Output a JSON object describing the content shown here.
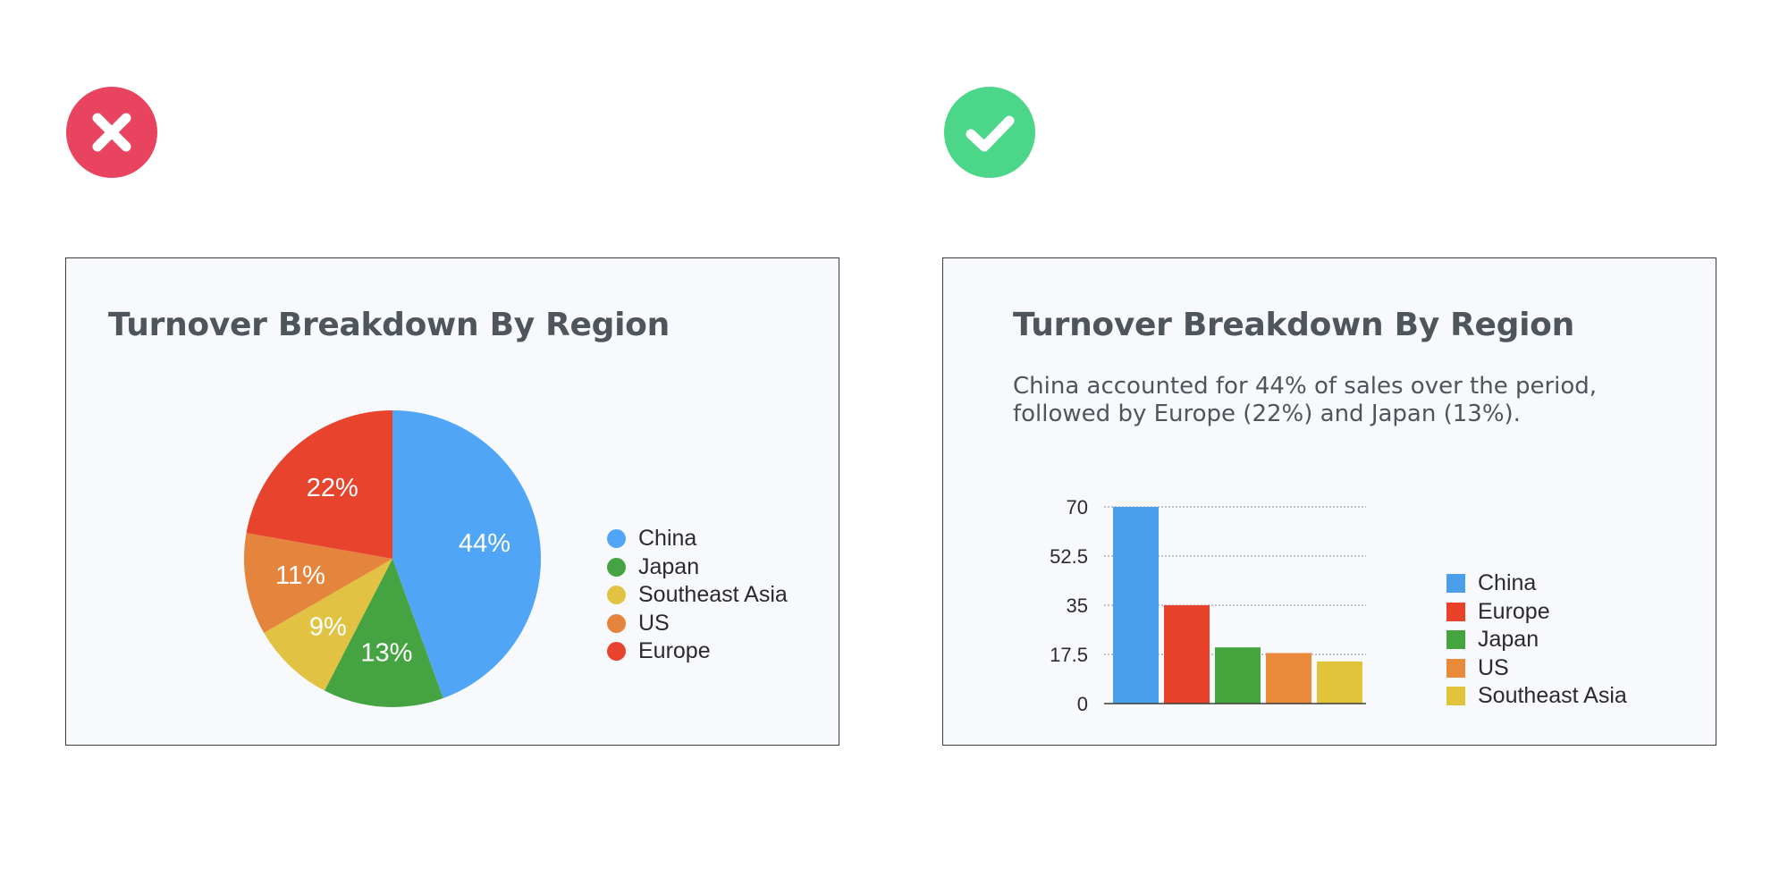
{
  "badges": {
    "bad": {
      "icon": "x-icon",
      "color": "#e8435f"
    },
    "good": {
      "icon": "checkmark-icon",
      "color": "#4cd68a"
    }
  },
  "panels": {
    "bad": {
      "title": "Turnover Breakdown By Region"
    },
    "good": {
      "title": "Turnover Breakdown By Region",
      "summary": "China accounted for 44% of sales over the period, followed by Europe (22%) and Japan (13%)."
    }
  },
  "chart_data": [
    {
      "type": "pie",
      "title": "Turnover Breakdown By Region",
      "slices": [
        {
          "label": "China",
          "value": 44,
          "display": "44%",
          "color": "#50a5f7"
        },
        {
          "label": "Japan",
          "value": 13,
          "display": "13%",
          "color": "#45a441"
        },
        {
          "label": "Southeast Asia",
          "value": 9,
          "display": "9%",
          "color": "#e2c243"
        },
        {
          "label": "US",
          "value": 11,
          "display": "11%",
          "color": "#e5853d"
        },
        {
          "label": "Europe",
          "value": 22,
          "display": "22%",
          "color": "#e7432d"
        }
      ],
      "legend": [
        "China",
        "Japan",
        "Southeast Asia",
        "US",
        "Europe"
      ],
      "legend_position": "right"
    },
    {
      "type": "bar",
      "title": "Turnover Breakdown By Region",
      "categories": [
        "China",
        "Europe",
        "Japan",
        "US",
        "Southeast Asia"
      ],
      "values": [
        70,
        35,
        20,
        18,
        15
      ],
      "colors": [
        "#4a9eea",
        "#e8432a",
        "#44a53e",
        "#e98a3b",
        "#e2c43a"
      ],
      "ylim": [
        0,
        70
      ],
      "yticks": [
        "0",
        "17.5",
        "35",
        "52.5",
        "70"
      ],
      "grid": true,
      "legend": [
        "China",
        "Europe",
        "Japan",
        "US",
        "Southeast Asia"
      ],
      "legend_position": "right"
    }
  ]
}
